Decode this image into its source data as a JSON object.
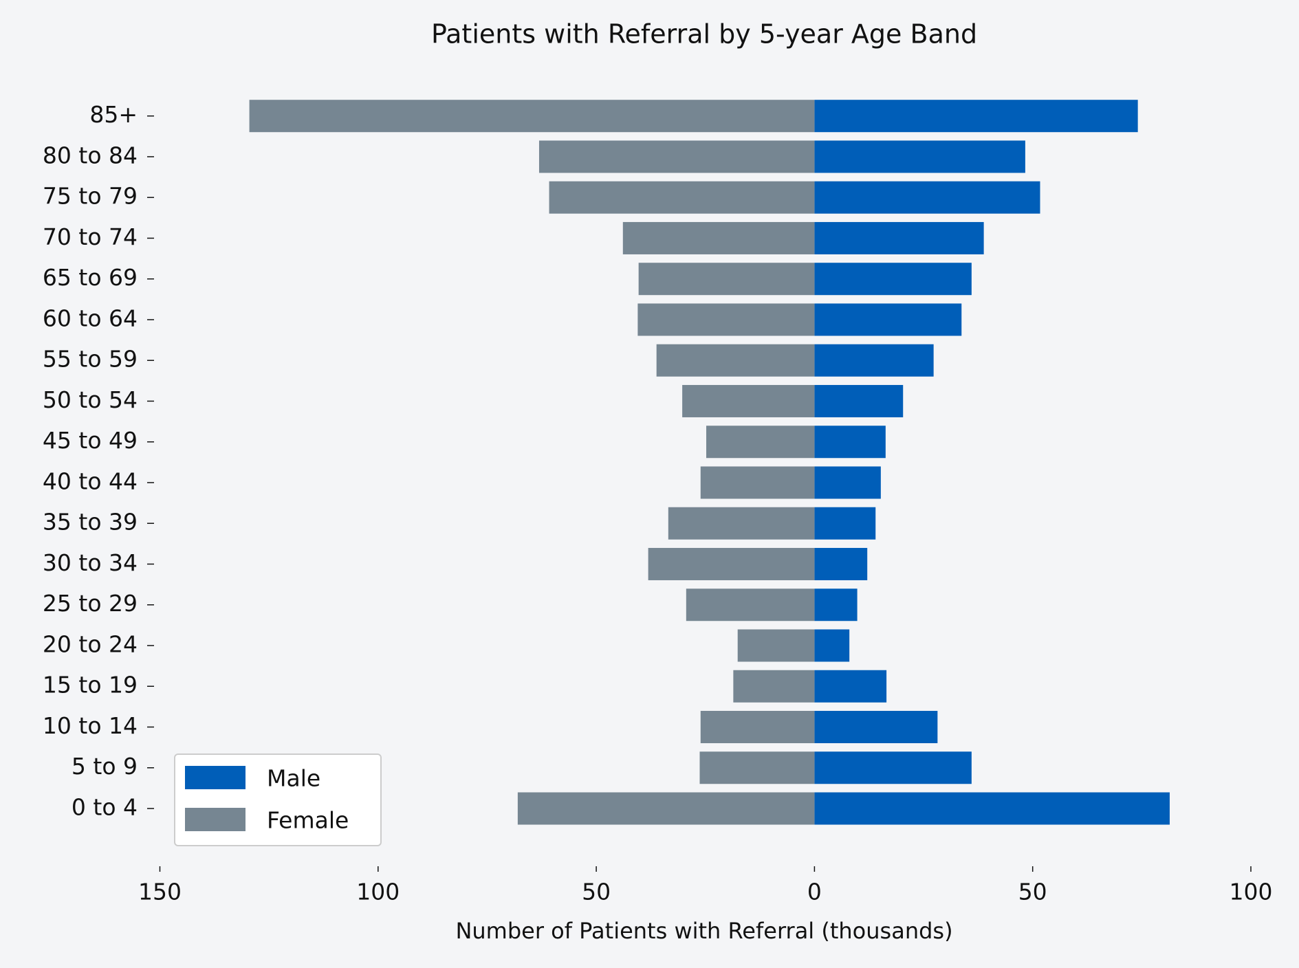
{
  "chart_data": {
    "type": "pyramid",
    "title": "Patients with Referral by 5-year Age Band",
    "xlabel": "Number of Patients with Referral (thousands)",
    "categories": [
      "0 to 4",
      "5 to 9",
      "10 to 14",
      "15 to 19",
      "20 to 24",
      "25 to 29",
      "30 to 34",
      "35 to 39",
      "40 to 44",
      "45 to 49",
      "50 to 54",
      "55 to 59",
      "60 to 64",
      "65 to 69",
      "70 to 74",
      "75 to 79",
      "80 to 84",
      "85+"
    ],
    "series": [
      {
        "name": "Male",
        "color": "#005eb8",
        "values": [
          81.4,
          36.0,
          28.2,
          16.5,
          8.0,
          9.8,
          12.1,
          14.0,
          15.2,
          16.3,
          20.3,
          27.3,
          33.7,
          36.0,
          38.8,
          51.7,
          48.3,
          74.1
        ]
      },
      {
        "name": "Female",
        "color": "#768692",
        "values": [
          -68.0,
          -26.3,
          -26.1,
          -18.6,
          -17.6,
          -29.4,
          -38.1,
          -33.5,
          -26.1,
          -24.8,
          -30.3,
          -36.2,
          -40.5,
          -40.3,
          -43.9,
          -60.8,
          -63.1,
          -129.5
        ]
      }
    ],
    "xlim": [
      -150,
      100
    ],
    "xticks": [
      {
        "value": -150,
        "label": "150"
      },
      {
        "value": -100,
        "label": "100"
      },
      {
        "value": -50,
        "label": "50"
      },
      0,
      50,
      100
    ],
    "legend": "lower left"
  }
}
